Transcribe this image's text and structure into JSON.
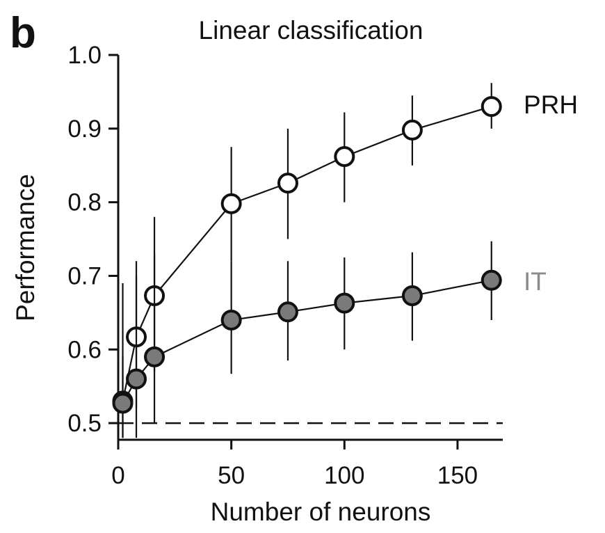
{
  "panel_letter": "b",
  "chart_data": {
    "type": "line",
    "title": "Linear classification",
    "xlabel": "Number of neurons",
    "ylabel": "Performance",
    "xlim": [
      0,
      170
    ],
    "ylim": [
      0.48,
      1.0
    ],
    "xticks": [
      0,
      50,
      100,
      150
    ],
    "xtick_labels": [
      "0",
      "50",
      "100",
      "150"
    ],
    "yticks": [
      0.5,
      0.6,
      0.7,
      0.8,
      0.9,
      1.0
    ],
    "ytick_labels": [
      "0.5",
      "0.6",
      "0.7",
      "0.8",
      "0.9",
      "1.0"
    ],
    "chance_level": 0.5,
    "grid": false,
    "series": [
      {
        "name": "PRH",
        "label_color": "#111111",
        "marker_fill": "#ffffff",
        "x": [
          2,
          8,
          16,
          50,
          75,
          100,
          130,
          165
        ],
        "y": [
          0.53,
          0.617,
          0.673,
          0.798,
          0.826,
          0.862,
          0.898,
          0.93
        ],
        "err_low": [
          0.48,
          0.52,
          0.57,
          0.72,
          0.75,
          0.8,
          0.85,
          0.9
        ],
        "err_high": [
          0.59,
          0.7,
          0.78,
          0.875,
          0.9,
          0.922,
          0.945,
          0.962
        ]
      },
      {
        "name": "IT",
        "label_color": "#8a8a8a",
        "marker_fill": "#7a7a7a",
        "x": [
          2,
          8,
          16,
          50,
          75,
          100,
          130,
          165
        ],
        "y": [
          0.527,
          0.56,
          0.59,
          0.64,
          0.651,
          0.663,
          0.673,
          0.694
        ],
        "err_low": [
          0.48,
          0.48,
          0.5,
          0.567,
          0.585,
          0.6,
          0.612,
          0.64
        ],
        "err_high": [
          0.69,
          0.72,
          0.73,
          0.72,
          0.72,
          0.725,
          0.732,
          0.747
        ]
      }
    ]
  }
}
